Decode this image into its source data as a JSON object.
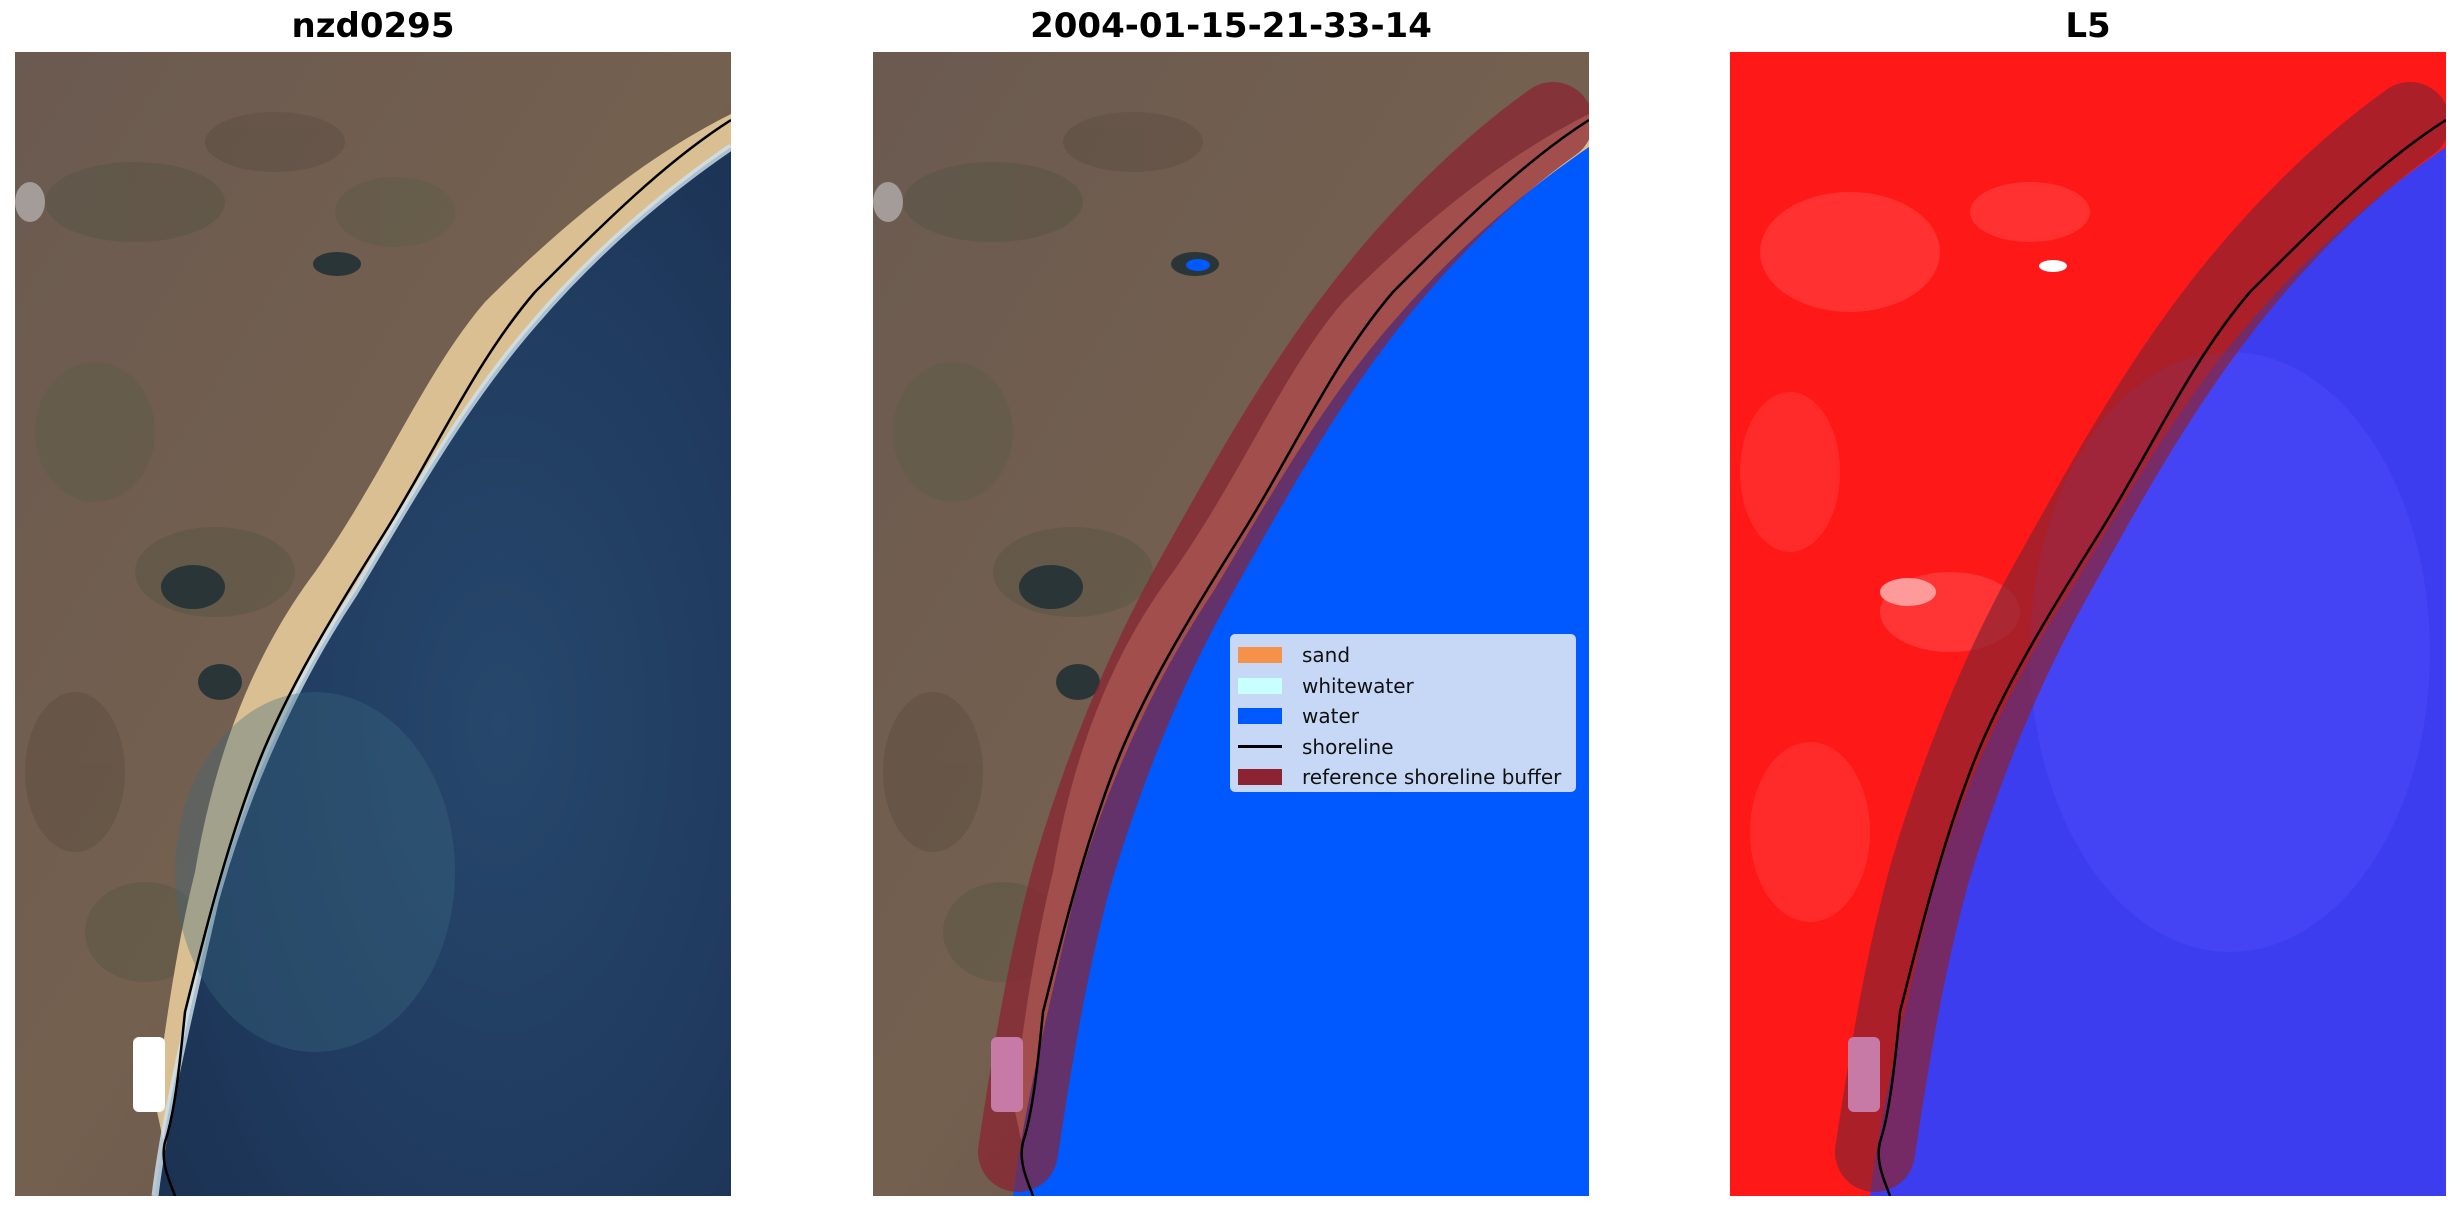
{
  "panels": [
    {
      "title": "nzd0295"
    },
    {
      "title": "2004-01-15-21-33-14"
    },
    {
      "title": "L5"
    }
  ],
  "legend": {
    "items": [
      {
        "label": "sand",
        "color": "#f6914a"
      },
      {
        "label": "whitewater",
        "color": "#c8ffff"
      },
      {
        "label": "water",
        "color": "#0059ff"
      },
      {
        "label": "shoreline",
        "color": "#000000"
      },
      {
        "label": "reference shoreline buffer",
        "color": "#8b2331"
      }
    ]
  },
  "colors": {
    "land": "#6e5a4e",
    "ocean": "#1f3a5e",
    "sand_beach": "#d9bf92",
    "index_land": "#ff1818",
    "index_water": "#3d3df0"
  }
}
